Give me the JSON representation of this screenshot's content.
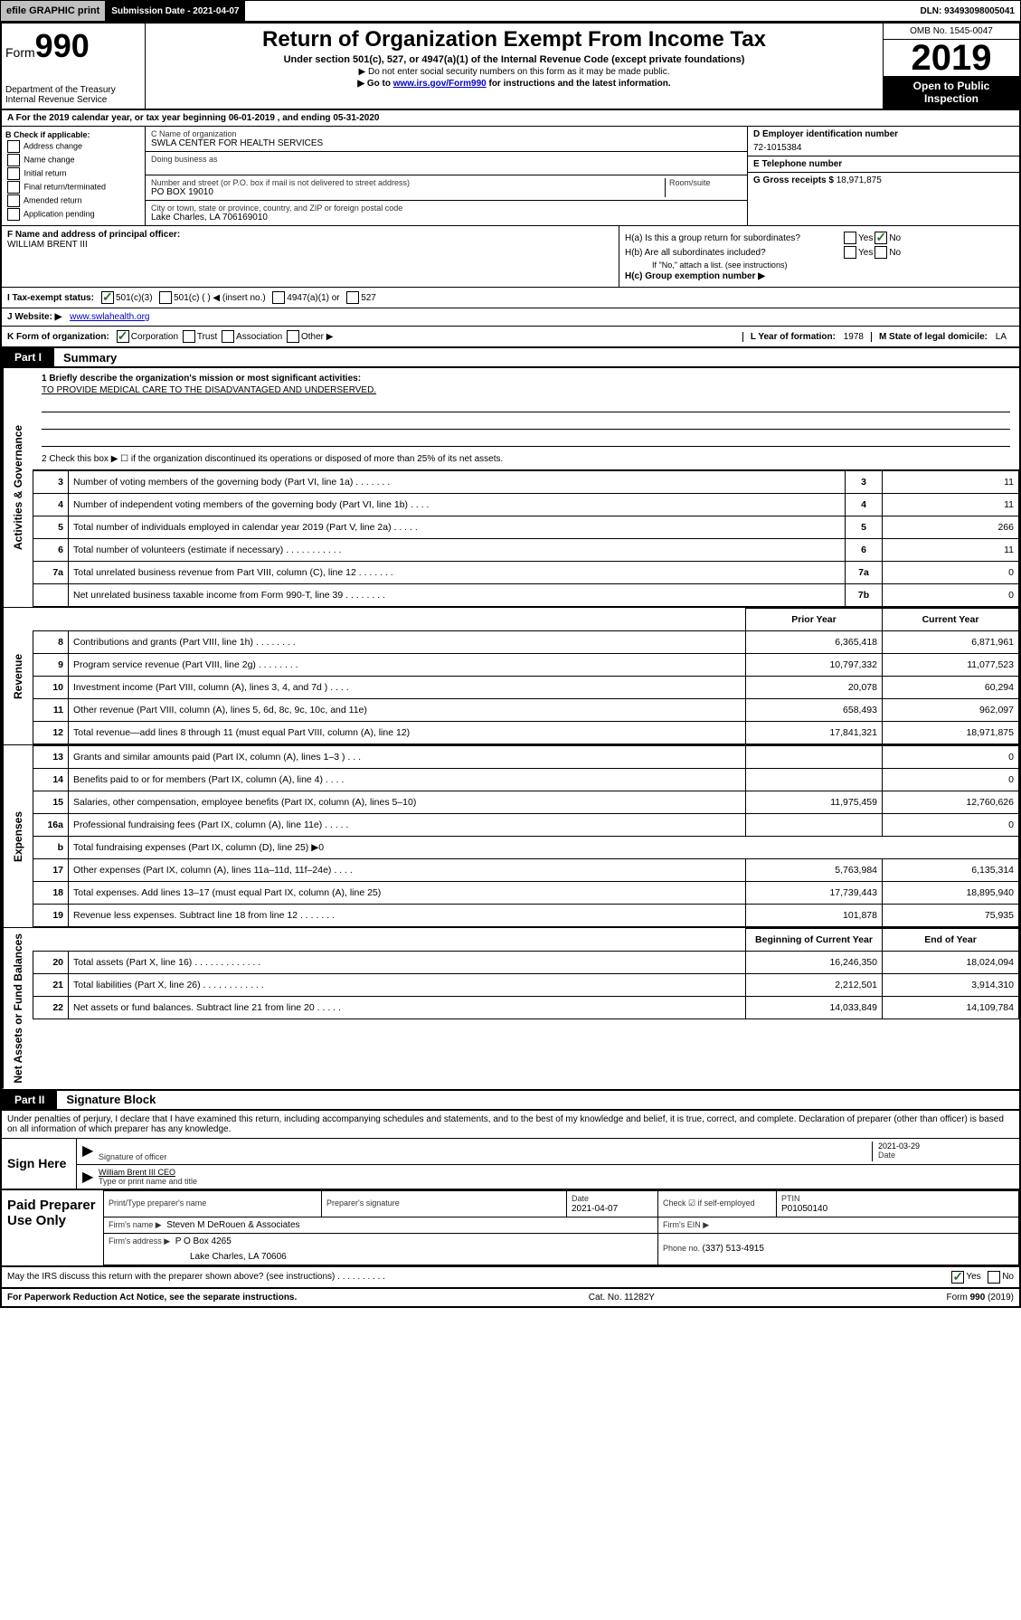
{
  "topbar": {
    "efile": "efile GRAPHIC print",
    "submission_label": "Submission Date - 2021-04-07",
    "dln": "DLN: 93493098005041"
  },
  "header": {
    "form_prefix": "Form",
    "form_number": "990",
    "dept": "Department of the Treasury",
    "irs": "Internal Revenue Service",
    "title": "Return of Organization Exempt From Income Tax",
    "subtitle": "Under section 501(c), 527, or 4947(a)(1) of the Internal Revenue Code (except private foundations)",
    "note1": "▶ Do not enter social security numbers on this form as it may be made public.",
    "note2_pre": "▶ Go to ",
    "note2_link": "www.irs.gov/Form990",
    "note2_post": " for instructions and the latest information.",
    "omb": "OMB No. 1545-0047",
    "year": "2019",
    "open": "Open to Public Inspection"
  },
  "row_a": "A For the 2019 calendar year, or tax year beginning 06-01-2019    , and ending 05-31-2020",
  "checkB": {
    "label": "B Check if applicable:",
    "items": [
      "Address change",
      "Name change",
      "Initial return",
      "Final return/terminated",
      "Amended return",
      "Application pending"
    ]
  },
  "blockC": {
    "name_label": "C Name of organization",
    "name": "SWLA CENTER FOR HEALTH SERVICES",
    "dba_label": "Doing business as",
    "addr_label": "Number and street (or P.O. box if mail is not delivered to street address)",
    "room_label": "Room/suite",
    "addr": "PO BOX 19010",
    "city_label": "City or town, state or province, country, and ZIP or foreign postal code",
    "city": "Lake Charles, LA  706169010"
  },
  "blockD": {
    "label": "D Employer identification number",
    "value": "72-1015384"
  },
  "blockE": {
    "label": "E Telephone number"
  },
  "blockG": {
    "label": "G Gross receipts $ ",
    "value": "18,971,875"
  },
  "blockF": {
    "label": "F Name and address of principal officer:",
    "name": "WILLIAM BRENT III"
  },
  "blockH": {
    "ha": "H(a)  Is this a group return for subordinates?",
    "hb": "H(b)  Are all subordinates included?",
    "hb_note": "If \"No,\" attach a list. (see instructions)",
    "hc": "H(c)  Group exemption number ▶",
    "yes": "Yes",
    "no": "No"
  },
  "rowI": {
    "label": "I   Tax-exempt status:",
    "opts": [
      "501(c)(3)",
      "501(c) (  ) ◀ (insert no.)",
      "4947(a)(1) or",
      "527"
    ]
  },
  "rowJ": {
    "label": "J   Website: ▶",
    "value": "www.swlahealth.org"
  },
  "rowK": {
    "label": "K Form of organization:",
    "opts": [
      "Corporation",
      "Trust",
      "Association",
      "Other ▶"
    ],
    "L_label": "L Year of formation: ",
    "L_val": "1978",
    "M_label": "M State of legal domicile: ",
    "M_val": "LA"
  },
  "part1": {
    "tab": "Part I",
    "title": "Summary",
    "q1_label": "1  Briefly describe the organization's mission or most significant activities:",
    "q1_text": "TO PROVIDE MEDICAL CARE TO THE DISADVANTAGED AND UNDERSERVED.",
    "q2": "2   Check this box ▶ ☐  if the organization discontinued its operations or disposed of more than 25% of its net assets."
  },
  "side_labels": {
    "gov": "Activities & Governance",
    "rev": "Revenue",
    "exp": "Expenses",
    "net": "Net Assets or Fund Balances"
  },
  "col_headers": {
    "prior": "Prior Year",
    "current": "Current Year",
    "begin": "Beginning of Current Year",
    "end": "End of Year"
  },
  "lines_gov": [
    {
      "n": "3",
      "d": "Number of voting members of the governing body (Part VI, line 1a)   .   .   .   .   .   .   .",
      "b": "3",
      "v": "11"
    },
    {
      "n": "4",
      "d": "Number of independent voting members of the governing body (Part VI, line 1b)   .   .   .   .",
      "b": "4",
      "v": "11"
    },
    {
      "n": "5",
      "d": "Total number of individuals employed in calendar year 2019 (Part V, line 2a)   .   .   .   .   .",
      "b": "5",
      "v": "266"
    },
    {
      "n": "6",
      "d": "Total number of volunteers (estimate if necessary)   .   .   .   .   .   .   .   .   .   .   .",
      "b": "6",
      "v": "11"
    },
    {
      "n": "7a",
      "d": "Total unrelated business revenue from Part VIII, column (C), line 12   .   .   .   .   .   .   .",
      "b": "7a",
      "v": "0"
    },
    {
      "n": "",
      "d": "Net unrelated business taxable income from Form 990-T, line 39   .   .   .   .   .   .   .   .",
      "b": "7b",
      "v": "0"
    }
  ],
  "lines_rev": [
    {
      "n": "8",
      "d": "Contributions and grants (Part VIII, line 1h)   .   .   .   .   .   .   .   .",
      "p": "6,365,418",
      "c": "6,871,961"
    },
    {
      "n": "9",
      "d": "Program service revenue (Part VIII, line 2g)   .   .   .   .   .   .   .   .",
      "p": "10,797,332",
      "c": "11,077,523"
    },
    {
      "n": "10",
      "d": "Investment income (Part VIII, column (A), lines 3, 4, and 7d )   .   .   .   .",
      "p": "20,078",
      "c": "60,294"
    },
    {
      "n": "11",
      "d": "Other revenue (Part VIII, column (A), lines 5, 6d, 8c, 9c, 10c, and 11e)",
      "p": "658,493",
      "c": "962,097"
    },
    {
      "n": "12",
      "d": "Total revenue—add lines 8 through 11 (must equal Part VIII, column (A), line 12)",
      "p": "17,841,321",
      "c": "18,971,875"
    }
  ],
  "lines_exp": [
    {
      "n": "13",
      "d": "Grants and similar amounts paid (Part IX, column (A), lines 1–3 )   .   .   .",
      "p": "",
      "c": "0"
    },
    {
      "n": "14",
      "d": "Benefits paid to or for members (Part IX, column (A), line 4)   .   .   .   .",
      "p": "",
      "c": "0"
    },
    {
      "n": "15",
      "d": "Salaries, other compensation, employee benefits (Part IX, column (A), lines 5–10)",
      "p": "11,975,459",
      "c": "12,760,626"
    },
    {
      "n": "16a",
      "d": "Professional fundraising fees (Part IX, column (A), line 11e)   .   .   .   .   .",
      "p": "",
      "c": "0"
    },
    {
      "n": "b",
      "d": "Total fundraising expenses (Part IX, column (D), line 25) ▶0",
      "p": "—",
      "c": "—"
    },
    {
      "n": "17",
      "d": "Other expenses (Part IX, column (A), lines 11a–11d, 11f–24e)   .   .   .   .",
      "p": "5,763,984",
      "c": "6,135,314"
    },
    {
      "n": "18",
      "d": "Total expenses. Add lines 13–17 (must equal Part IX, column (A), line 25)",
      "p": "17,739,443",
      "c": "18,895,940"
    },
    {
      "n": "19",
      "d": "Revenue less expenses. Subtract line 18 from line 12   .   .   .   .   .   .   .",
      "p": "101,878",
      "c": "75,935"
    }
  ],
  "lines_net": [
    {
      "n": "20",
      "d": "Total assets (Part X, line 16)   .   .   .   .   .   .   .   .   .   .   .   .   .",
      "p": "16,246,350",
      "c": "18,024,094"
    },
    {
      "n": "21",
      "d": "Total liabilities (Part X, line 26)   .   .   .   .   .   .   .   .   .   .   .   .",
      "p": "2,212,501",
      "c": "3,914,310"
    },
    {
      "n": "22",
      "d": "Net assets or fund balances. Subtract line 21 from line 20   .   .   .   .   .",
      "p": "14,033,849",
      "c": "14,109,784"
    }
  ],
  "part2": {
    "tab": "Part II",
    "title": "Signature Block"
  },
  "perjury": "Under penalties of perjury, I declare that I have examined this return, including accompanying schedules and statements, and to the best of my knowledge and belief, it is true, correct, and complete. Declaration of preparer (other than officer) is based on all information of which preparer has any knowledge.",
  "sign": {
    "label": "Sign Here",
    "date": "2021-03-29",
    "sig_label": "Signature of officer",
    "date_label": "Date",
    "name": "William Brent III  CEO",
    "name_label": "Type or print name and title"
  },
  "paid": {
    "label": "Paid Preparer Use Only",
    "h1": "Print/Type preparer's name",
    "h2": "Preparer's signature",
    "h3": "Date",
    "date": "2021-04-07",
    "check_label": "Check ☑ if self-employed",
    "ptin_label": "PTIN",
    "ptin": "P01050140",
    "firm_label": "Firm's name    ▶",
    "firm": "Steven M DeRouen & Associates",
    "ein_label": "Firm's EIN ▶",
    "addr_label": "Firm's address ▶",
    "addr1": "P O Box 4265",
    "addr2": "Lake Charles, LA  70606",
    "phone_label": "Phone no. ",
    "phone": "(337) 513-4915"
  },
  "discuss": {
    "text": "May the IRS discuss this return with the preparer shown above? (see instructions)   .   .   .   .   .   .   .   .   .   .",
    "yes": "Yes",
    "no": "No"
  },
  "footer": {
    "left": "For Paperwork Reduction Act Notice, see the separate instructions.",
    "mid": "Cat. No. 11282Y",
    "right": "Form 990 (2019)"
  },
  "colors": {
    "link": "#0000cc",
    "check_green": "#2a6e2a"
  }
}
